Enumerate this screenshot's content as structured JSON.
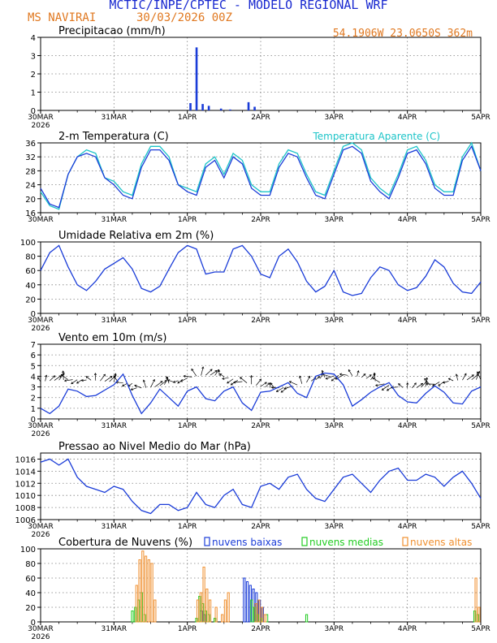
{
  "header": {
    "title": "MCTIC/INPE/CPTEC - MODELO REGIONAL WRF",
    "location": "MS NAVIRAI",
    "run": "30/03/2026 00Z",
    "coords": "54.1906W 23.0650S 362m"
  },
  "x_ticks": [
    "30MAR",
    "31MAR",
    "1APR",
    "2APR",
    "3APR",
    "4APR",
    "5APR"
  ],
  "year": "2026",
  "colors": {
    "blue": "#1a3cd8",
    "cyan": "#1cc4c8",
    "green": "#22cc22",
    "orange": "#f09030",
    "title_blue": "#1a2ad0",
    "title_orange": "#e07820"
  },
  "chart_data": [
    {
      "type": "bar",
      "title": "Precipitacao (mm/h)",
      "x_range_hours": [
        0,
        144
      ],
      "ylim": [
        0,
        4
      ],
      "yticks": [
        0,
        1,
        2,
        3,
        4
      ],
      "x": [
        49,
        51,
        53,
        55,
        59,
        62,
        68,
        70
      ],
      "values": [
        0.4,
        3.45,
        0.35,
        0.25,
        0.1,
        0.05,
        0.45,
        0.2
      ]
    },
    {
      "type": "line",
      "title": "2-m Temperatura (C)",
      "legend": "Temperatura Aparente (C)",
      "ylim": [
        16,
        36
      ],
      "yticks": [
        16,
        20,
        24,
        28,
        32,
        36
      ],
      "x": [
        0,
        3,
        6,
        9,
        12,
        15,
        18,
        21,
        24,
        27,
        30,
        33,
        36,
        39,
        42,
        45,
        48,
        51,
        54,
        57,
        60,
        63,
        66,
        69,
        72,
        75,
        78,
        81,
        84,
        87,
        90,
        93,
        96,
        99,
        102,
        105,
        108,
        111,
        114,
        117,
        120,
        123,
        126,
        129,
        132,
        135,
        138,
        141,
        144
      ],
      "series": [
        {
          "name": "2-m Temperatura",
          "values": [
            23,
            18.5,
            17.5,
            27,
            32,
            33,
            32,
            26,
            24,
            21,
            20,
            29,
            34,
            34,
            31,
            24,
            22,
            21,
            29,
            31,
            26,
            32,
            30,
            23,
            21,
            21,
            29,
            33,
            32,
            26,
            21,
            20,
            27,
            34,
            35,
            33,
            25,
            22,
            20,
            26,
            33,
            34,
            30,
            23,
            21,
            21,
            31,
            35,
            28
          ]
        },
        {
          "name": "Temperatura Aparente",
          "values": [
            22,
            18,
            17,
            27,
            32,
            34,
            33,
            26,
            25,
            22,
            21,
            30,
            35,
            35,
            32,
            24,
            23,
            22,
            30,
            32,
            27,
            33,
            31,
            24,
            22,
            22,
            30,
            34,
            33,
            27,
            22,
            21,
            28,
            35,
            36,
            34,
            26,
            23,
            21,
            27,
            34,
            35,
            31,
            24,
            22,
            22,
            32,
            36,
            28
          ]
        }
      ]
    },
    {
      "type": "line",
      "title": "Umidade Relativa em 2m (%)",
      "ylim": [
        0,
        100
      ],
      "yticks": [
        0,
        20,
        40,
        60,
        80,
        100
      ],
      "x": [
        0,
        3,
        6,
        9,
        12,
        15,
        18,
        21,
        24,
        27,
        30,
        33,
        36,
        39,
        42,
        45,
        48,
        51,
        54,
        57,
        60,
        63,
        66,
        69,
        72,
        75,
        78,
        81,
        84,
        87,
        90,
        93,
        96,
        99,
        102,
        105,
        108,
        111,
        114,
        117,
        120,
        123,
        126,
        129,
        132,
        135,
        138,
        141,
        144
      ],
      "series": [
        {
          "name": "Umidade Relativa",
          "values": [
            60,
            85,
            95,
            65,
            40,
            32,
            45,
            62,
            70,
            78,
            62,
            35,
            30,
            38,
            62,
            85,
            95,
            90,
            55,
            58,
            58,
            90,
            95,
            80,
            55,
            50,
            80,
            90,
            72,
            45,
            30,
            38,
            60,
            30,
            25,
            28,
            50,
            65,
            60,
            40,
            32,
            36,
            52,
            75,
            65,
            42,
            30,
            28,
            44
          ]
        }
      ]
    },
    {
      "type": "line",
      "title": "Vento em 10m (m/s)",
      "ylim": [
        0,
        7
      ],
      "yticks": [
        0,
        1,
        2,
        3,
        4,
        5,
        6,
        7
      ],
      "note": "wind barbs (direction arrows) drawn along the upper band",
      "x": [
        0,
        3,
        6,
        9,
        12,
        15,
        18,
        21,
        24,
        27,
        30,
        33,
        36,
        39,
        42,
        45,
        48,
        51,
        54,
        57,
        60,
        63,
        66,
        69,
        72,
        75,
        78,
        81,
        84,
        87,
        90,
        93,
        96,
        99,
        102,
        105,
        108,
        111,
        114,
        117,
        120,
        123,
        126,
        129,
        132,
        135,
        138,
        141,
        144
      ],
      "series": [
        {
          "name": "Vento",
          "values": [
            1,
            0.5,
            1.2,
            2.8,
            2.6,
            2.1,
            2.2,
            2.7,
            3.2,
            4.2,
            2.2,
            0.5,
            1.5,
            2.8,
            2.0,
            1.2,
            2.6,
            3.0,
            1.9,
            1.7,
            2.6,
            3.0,
            1.5,
            0.8,
            2.5,
            2.6,
            3.0,
            3.4,
            2.4,
            2.0,
            4.0,
            4.3,
            4.2,
            3.2,
            1.2,
            1.8,
            2.5,
            3.0,
            3.4,
            2.2,
            1.6,
            1.5,
            2.4,
            3.1,
            2.5,
            1.5,
            1.4,
            2.6,
            3.0
          ]
        }
      ]
    },
    {
      "type": "line",
      "title": "Pressao ao Nivel Medio do Mar (hPa)",
      "ylim": [
        1006,
        1017
      ],
      "yticks": [
        1006,
        1008,
        1010,
        1012,
        1014,
        1016
      ],
      "x": [
        0,
        3,
        6,
        9,
        12,
        15,
        18,
        21,
        24,
        27,
        30,
        33,
        36,
        39,
        42,
        45,
        48,
        51,
        54,
        57,
        60,
        63,
        66,
        69,
        72,
        75,
        78,
        81,
        84,
        87,
        90,
        93,
        96,
        99,
        102,
        105,
        108,
        111,
        114,
        117,
        120,
        123,
        126,
        129,
        132,
        135,
        138,
        141,
        144
      ],
      "series": [
        {
          "name": "Pressao",
          "values": [
            1015.5,
            1016.0,
            1015.0,
            1016.0,
            1013.0,
            1011.5,
            1011.0,
            1010.5,
            1011.5,
            1011.0,
            1009.0,
            1007.5,
            1007.0,
            1008.5,
            1008.5,
            1007.5,
            1008.0,
            1010.5,
            1008.5,
            1008.0,
            1010.0,
            1011.0,
            1008.5,
            1008.0,
            1011.5,
            1012.0,
            1011.0,
            1013.0,
            1013.5,
            1011.0,
            1009.5,
            1009.0,
            1011.0,
            1013.0,
            1013.5,
            1012.0,
            1010.5,
            1012.5,
            1014.0,
            1014.5,
            1012.5,
            1012.5,
            1013.5,
            1013.0,
            1011.5,
            1013.0,
            1014.0,
            1012.0,
            1009.5
          ]
        }
      ]
    },
    {
      "type": "bar",
      "title": "Cobertura de Nuvens (%)",
      "ylim": [
        0,
        100
      ],
      "yticks": [
        0,
        20,
        40,
        60,
        80,
        100
      ],
      "legend": [
        "nuvens baixas",
        "nuvens medias",
        "nuvens altas"
      ],
      "series": [
        {
          "name": "nuvens baixas",
          "x": [
            67,
            68,
            69,
            70,
            71,
            72,
            73,
            53,
            54
          ],
          "values": [
            60,
            55,
            50,
            45,
            40,
            30,
            20,
            15,
            10
          ]
        },
        {
          "name": "nuvens medias",
          "x": [
            30,
            31,
            32,
            33,
            34,
            51,
            52,
            53,
            54,
            55,
            57,
            69,
            70,
            71,
            72,
            74,
            87,
            142,
            143
          ],
          "values": [
            15,
            20,
            30,
            40,
            10,
            5,
            35,
            25,
            15,
            10,
            5,
            30,
            20,
            10,
            5,
            10,
            10,
            15,
            10
          ]
        },
        {
          "name": "nuvens altas",
          "x": [
            31,
            32,
            33,
            34,
            35,
            36,
            37,
            51,
            52,
            53,
            54,
            55,
            57,
            59,
            60,
            61,
            70,
            71,
            72,
            73,
            142,
            143
          ],
          "values": [
            50,
            85,
            97,
            90,
            85,
            80,
            30,
            30,
            40,
            75,
            45,
            30,
            20,
            10,
            30,
            40,
            25,
            30,
            20,
            10,
            60,
            20
          ]
        }
      ]
    }
  ]
}
